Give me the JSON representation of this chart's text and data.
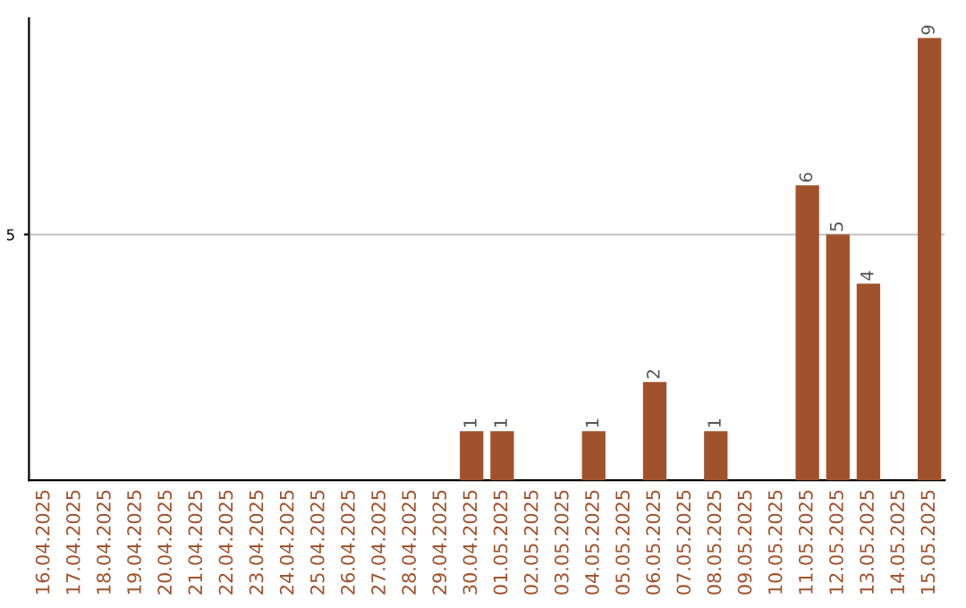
{
  "chart_data": {
    "type": "bar",
    "categories": [
      "16.04.2025",
      "17.04.2025",
      "18.04.2025",
      "19.04.2025",
      "20.04.2025",
      "21.04.2025",
      "22.04.2025",
      "23.04.2025",
      "24.04.2025",
      "25.04.2025",
      "26.04.2025",
      "27.04.2025",
      "28.04.2025",
      "29.04.2025",
      "30.04.2025",
      "01.05.2025",
      "02.05.2025",
      "03.05.2025",
      "04.05.2025",
      "05.05.2025",
      "06.05.2025",
      "07.05.2025",
      "08.05.2025",
      "09.05.2025",
      "10.05.2025",
      "11.05.2025",
      "12.05.2025",
      "13.05.2025",
      "14.05.2025",
      "15.05.2025"
    ],
    "values": [
      null,
      null,
      null,
      null,
      null,
      null,
      null,
      null,
      null,
      null,
      null,
      null,
      null,
      null,
      1,
      1,
      null,
      null,
      1,
      null,
      2,
      null,
      1,
      null,
      null,
      6,
      5,
      4,
      null,
      9
    ],
    "value_labels": [
      null,
      null,
      null,
      null,
      null,
      null,
      null,
      null,
      null,
      null,
      null,
      null,
      null,
      null,
      "1",
      "1",
      null,
      null,
      "1",
      null,
      "2",
      null,
      "1",
      null,
      null,
      "6",
      "5",
      "4",
      null,
      "9"
    ],
    "ylim": [
      0,
      9.4
    ],
    "color": "#a0522d",
    "yticks": [
      5
    ],
    "grid": "y",
    "legend": false
  }
}
